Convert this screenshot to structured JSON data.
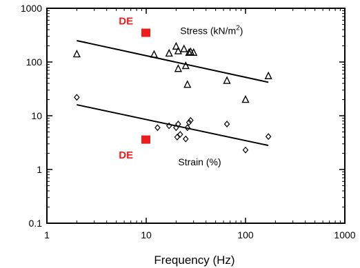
{
  "chart_data": {
    "type": "scatter",
    "title": "",
    "xlabel": "Frequency (Hz)",
    "ylabel": "",
    "xscale": "log",
    "yscale": "log",
    "xlim": [
      1,
      1000
    ],
    "ylim": [
      0.1,
      1000
    ],
    "grid": false,
    "xticks": [
      1,
      10,
      100,
      1000
    ],
    "yticks": [
      0.1,
      1,
      10,
      100,
      1000
    ],
    "xtick_labels": [
      "1",
      "10",
      "100",
      "1000"
    ],
    "ytick_labels": [
      "0.1",
      "1",
      "10",
      "100",
      "1000"
    ],
    "series": [
      {
        "name": "Stress (kN/m²)",
        "marker": "triangle-open",
        "color": "#000000",
        "x": [
          2,
          12,
          17,
          20,
          21,
          21,
          24,
          25,
          26,
          27,
          28,
          30,
          65,
          100,
          170
        ],
        "y": [
          140,
          138,
          145,
          195,
          75,
          160,
          175,
          85,
          38,
          150,
          155,
          150,
          45,
          20,
          55
        ]
      },
      {
        "name": "Strain (%)",
        "marker": "diamond-open",
        "color": "#000000",
        "x": [
          2,
          13,
          17,
          20,
          20.5,
          21,
          22,
          25,
          26,
          27,
          28,
          65,
          100,
          170
        ],
        "y": [
          22,
          6,
          6.5,
          6,
          4,
          7,
          4.5,
          3.7,
          6,
          7.5,
          8.2,
          7,
          2.3,
          4.1
        ]
      },
      {
        "name": "DE",
        "marker": "square-filled",
        "color": "#ee1c1c",
        "x": [
          10,
          10
        ],
        "y": [
          350,
          3.6
        ]
      }
    ],
    "fit_lines": [
      {
        "series": "Stress (kN/m²)",
        "x": [
          2,
          170
        ],
        "y": [
          250,
          42
        ]
      },
      {
        "series": "Strain (%)",
        "x": [
          2,
          170
        ],
        "y": [
          16,
          2.8
        ]
      }
    ],
    "annotations": [
      {
        "text": "Stress (kN/m",
        "superscript": "2",
        "suffix": ")",
        "x": 22,
        "y": 330
      },
      {
        "text": "Strain (%)",
        "x": 21,
        "y": 1.2
      },
      {
        "text": "DE",
        "x": 5.3,
        "y": 500,
        "color": "#ee1c1c"
      },
      {
        "text": "DE",
        "x": 5.3,
        "y": 1.6,
        "color": "#ee1c1c"
      }
    ]
  }
}
